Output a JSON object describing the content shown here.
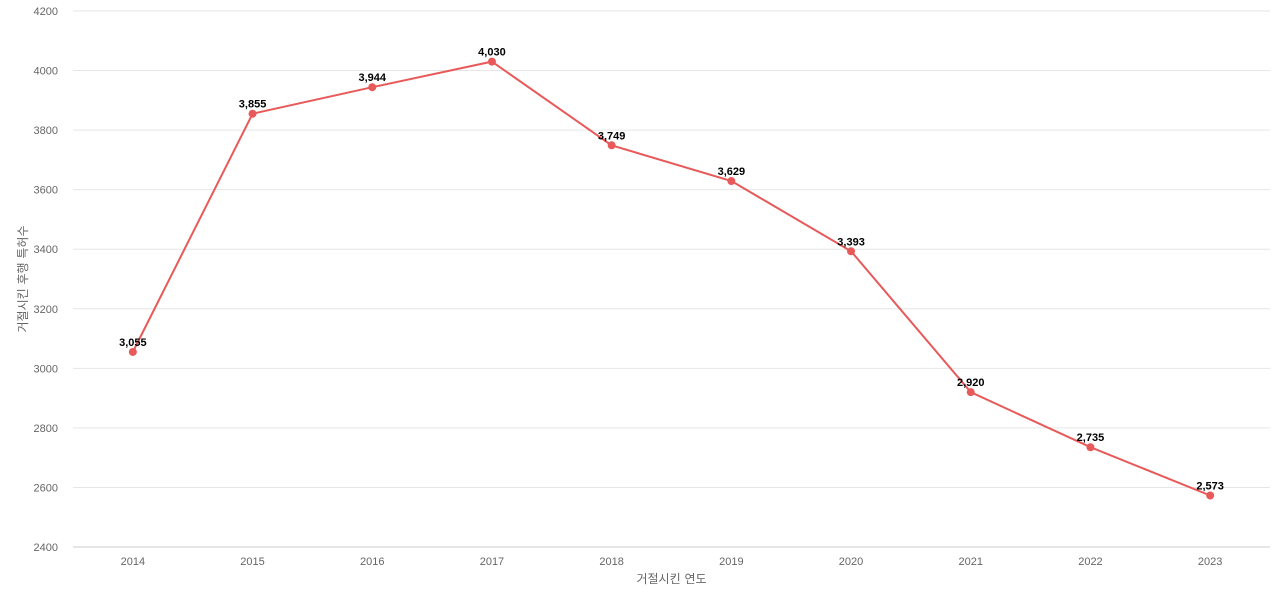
{
  "chart_data": {
    "type": "line",
    "categories": [
      "2014",
      "2015",
      "2016",
      "2017",
      "2018",
      "2019",
      "2020",
      "2021",
      "2022",
      "2023"
    ],
    "series": [
      {
        "values": [
          3055,
          3855,
          3944,
          4030,
          3749,
          3629,
          3393,
          2920,
          2735,
          2573
        ],
        "labels": [
          "3,055",
          "3,855",
          "3,944",
          "4,030",
          "3,749",
          "3,629",
          "3,393",
          "2,920",
          "2,735",
          "2,573"
        ],
        "color": "#e85a5a"
      }
    ],
    "xlabel": "거절시킨 연도",
    "ylabel": "거절시킨 후행 특허수",
    "ylim": [
      2400,
      4200
    ],
    "yticks": [
      2400,
      2600,
      2800,
      3000,
      3200,
      3400,
      3600,
      3800,
      4000,
      4200
    ],
    "grid": true,
    "legend": "none"
  }
}
